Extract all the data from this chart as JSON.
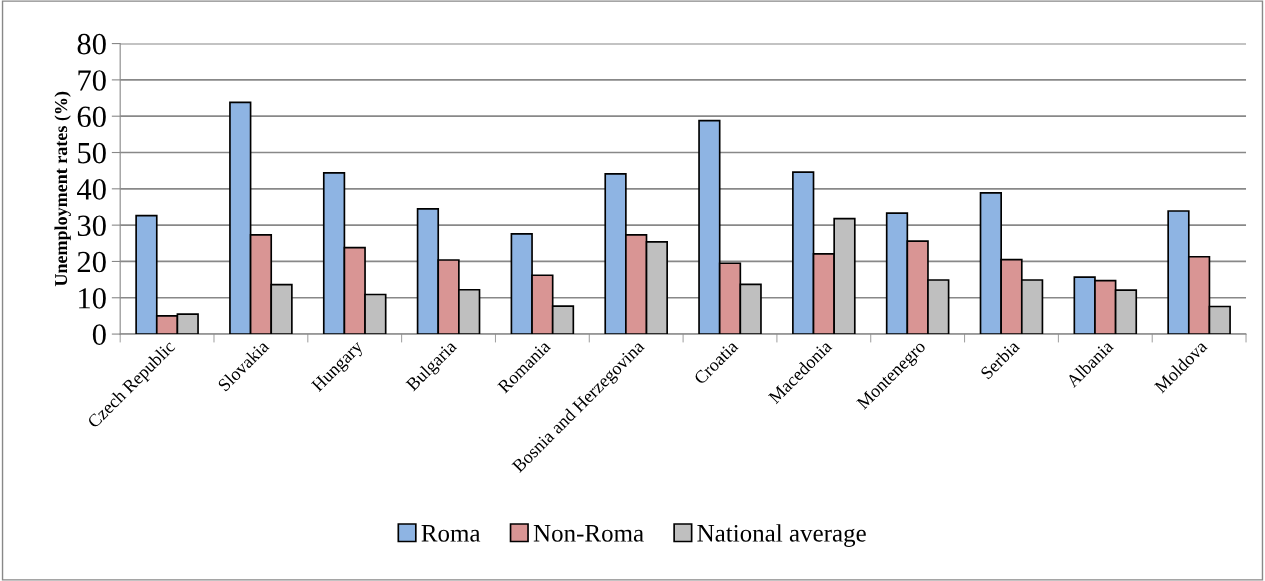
{
  "chart_data": {
    "type": "bar",
    "ylabel": "Unemployment rates (%)",
    "categories": [
      "Czech Republic",
      "Slovakia",
      "Hungary",
      "Bulgaria",
      "Romania",
      "Bosnia and Herzegovina",
      "Croatia",
      "Macedonia",
      "Montenegro",
      "Serbia",
      "Albania",
      "Moldova"
    ],
    "series": [
      {
        "name": "Roma",
        "color": "#8eb4e3",
        "values": [
          32.6,
          63.8,
          44.4,
          34.5,
          27.6,
          44.1,
          58.8,
          44.6,
          33.3,
          38.9,
          15.7,
          33.9
        ]
      },
      {
        "name": "Non-Roma",
        "color": "#d99594",
        "values": [
          5.0,
          27.3,
          23.8,
          20.4,
          16.2,
          27.3,
          19.5,
          22.1,
          25.6,
          20.5,
          14.7,
          21.3
        ]
      },
      {
        "name": "National average",
        "color": "#bfbfbf",
        "values": [
          5.5,
          13.6,
          10.9,
          12.2,
          7.7,
          25.4,
          13.7,
          31.8,
          14.9,
          14.9,
          12.1,
          7.6
        ]
      }
    ],
    "ylim": [
      0,
      80
    ],
    "yticks": [
      0,
      10,
      20,
      30,
      40,
      50,
      60,
      70,
      80
    ],
    "grid": "y",
    "legend": "bottom"
  }
}
